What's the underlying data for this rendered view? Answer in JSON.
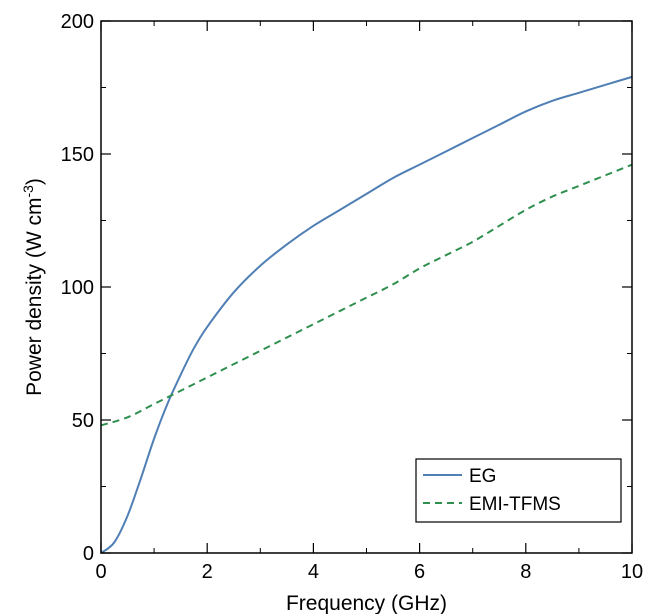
{
  "chart_data": {
    "type": "line",
    "xlabel": "Frequency (GHz)",
    "ylabel": {
      "prefix": "Power density (W cm",
      "superscript": "-3",
      "suffix": ")"
    },
    "xlim": [
      0,
      10
    ],
    "ylim": [
      0,
      200
    ],
    "xticks": [
      0,
      2,
      4,
      6,
      8,
      10
    ],
    "yticks": [
      0,
      50,
      100,
      150,
      200
    ],
    "xtick_labels": [
      "0",
      "2",
      "4",
      "6",
      "8",
      "10"
    ],
    "ytick_labels": [
      "0",
      "50",
      "100",
      "150",
      "200"
    ],
    "grid": false,
    "legend_position": "bottom-right",
    "series": [
      {
        "name": "EG",
        "color": "#4f7fb5",
        "style": "solid",
        "x": [
          0,
          0.25,
          0.5,
          0.75,
          1.0,
          1.25,
          1.5,
          1.75,
          2.0,
          2.5,
          3.0,
          3.5,
          4.0,
          4.5,
          5.0,
          5.5,
          6.0,
          6.5,
          7.0,
          7.5,
          8.0,
          8.5,
          9.0,
          9.5,
          10.0
        ],
        "y": [
          0,
          4,
          14,
          28,
          43,
          56,
          67,
          77,
          85,
          98,
          108,
          116,
          123,
          129,
          135,
          141,
          146,
          151,
          156,
          161,
          166,
          170,
          173,
          176,
          179
        ]
      },
      {
        "name": "EMI-TFMS",
        "color": "#2f8f4e",
        "style": "dashed",
        "x": [
          0,
          0.5,
          1.0,
          1.5,
          2.0,
          2.5,
          3.0,
          3.5,
          4.0,
          4.5,
          5.0,
          5.5,
          6.0,
          6.5,
          7.0,
          7.5,
          8.0,
          8.5,
          9.0,
          9.5,
          10.0
        ],
        "y": [
          48,
          51,
          56,
          61,
          66,
          71,
          76,
          81,
          86,
          91,
          96,
          101,
          107,
          112,
          117,
          123,
          129,
          134,
          138,
          142,
          146
        ]
      }
    ]
  }
}
